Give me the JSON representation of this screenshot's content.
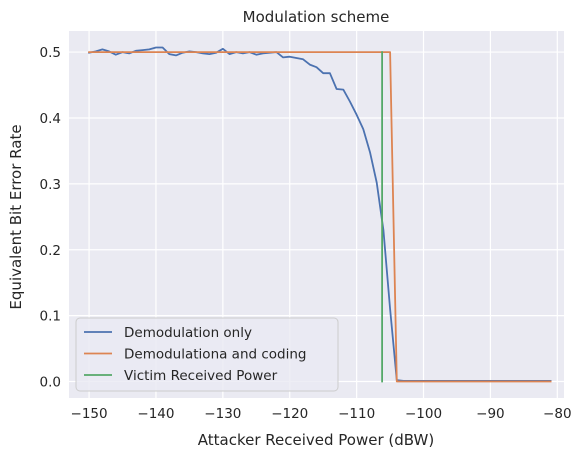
{
  "chart_data": {
    "type": "line",
    "title": "Modulation scheme",
    "xlabel": "Attacker Received Power (dBW)",
    "ylabel": "Equivalent Bit Error Rate",
    "xlim": [
      -153,
      -79
    ],
    "ylim": [
      -0.025,
      0.532
    ],
    "xticks": [
      -150,
      -140,
      -130,
      -120,
      -110,
      -100,
      -90,
      -80
    ],
    "xtick_labels": [
      "−150",
      "−140",
      "−130",
      "−120",
      "−110",
      "−100",
      "−90",
      "−80"
    ],
    "yticks": [
      0.0,
      0.1,
      0.2,
      0.3,
      0.4,
      0.5
    ],
    "ytick_labels": [
      "0.0",
      "0.1",
      "0.2",
      "0.3",
      "0.4",
      "0.5"
    ],
    "grid": true,
    "legend_position": "lower-left",
    "background": "#eaeaf2",
    "grid_color": "#ffffff",
    "series": [
      {
        "name": "Demodulation only",
        "color": "#4c72b0",
        "x": [
          -150,
          -149,
          -148,
          -147,
          -146,
          -145,
          -144,
          -143,
          -142,
          -141,
          -140,
          -139,
          -138,
          -137,
          -136,
          -135,
          -134,
          -133,
          -132,
          -131,
          -130,
          -129,
          -128,
          -127,
          -126,
          -125,
          -124,
          -123,
          -122,
          -121,
          -120,
          -119,
          -118,
          -117,
          -116,
          -115,
          -114,
          -113,
          -112,
          -111,
          -110,
          -109,
          -108,
          -107,
          -106,
          -105,
          -104,
          -103,
          -102,
          -101,
          -100,
          -99,
          -98,
          -97,
          -96,
          -95,
          -94,
          -93,
          -92,
          -91,
          -90,
          -89,
          -88,
          -87,
          -86,
          -85,
          -84,
          -83,
          -82,
          -81
        ],
        "y": [
          0.499,
          0.501,
          0.504,
          0.501,
          0.496,
          0.5,
          0.498,
          0.502,
          0.503,
          0.504,
          0.507,
          0.507,
          0.497,
          0.495,
          0.499,
          0.501,
          0.5,
          0.498,
          0.497,
          0.499,
          0.505,
          0.497,
          0.5,
          0.498,
          0.5,
          0.496,
          0.498,
          0.499,
          0.5,
          0.492,
          0.493,
          0.491,
          0.489,
          0.481,
          0.477,
          0.468,
          0.468,
          0.444,
          0.443,
          0.425,
          0.405,
          0.383,
          0.348,
          0.302,
          0.23,
          0.11,
          0.002,
          0.001,
          0.001,
          0.001,
          0.001,
          0.001,
          0.001,
          0.001,
          0.001,
          0.001,
          0.001,
          0.001,
          0.001,
          0.001,
          0.001,
          0.001,
          0.001,
          0.001,
          0.001,
          0.001,
          0.001,
          0.001,
          0.001,
          0.001
        ]
      },
      {
        "name": "Demodulationa and coding",
        "color": "#dd8452",
        "x": [
          -150,
          -105,
          -104,
          -81
        ],
        "y": [
          0.5,
          0.5,
          0.0,
          0.0
        ]
      },
      {
        "name": "Victim Received Power",
        "color": "#55a868",
        "x": [
          -106.2,
          -106.2
        ],
        "y": [
          0.0,
          0.5
        ]
      }
    ]
  }
}
